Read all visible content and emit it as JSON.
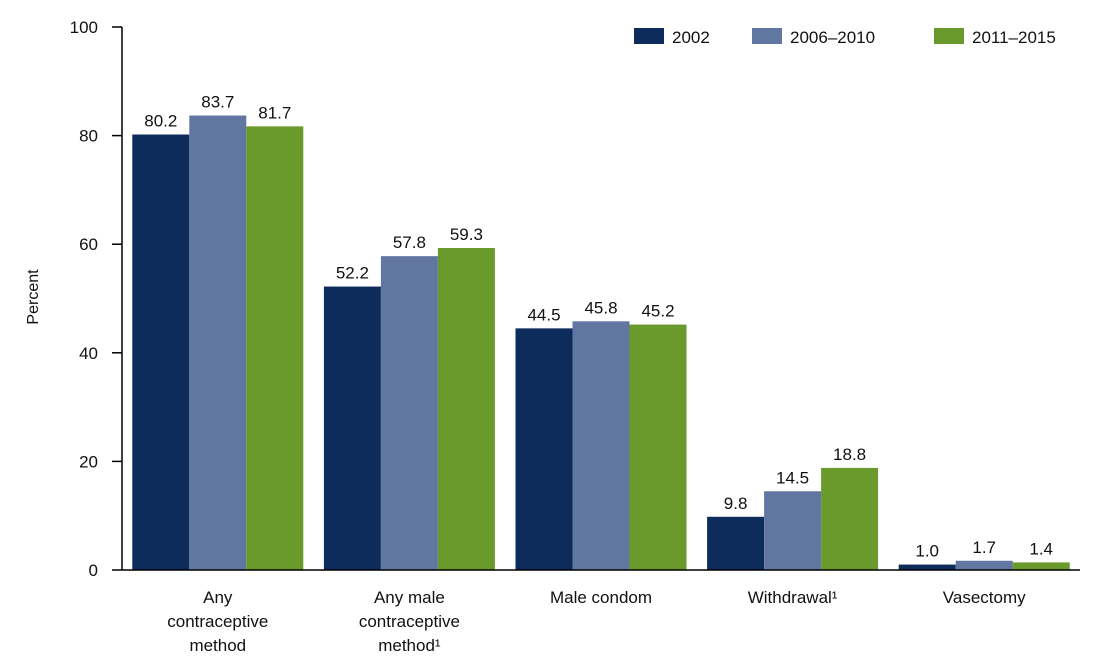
{
  "chart_data": {
    "type": "bar",
    "ylabel": "Percent",
    "xlabel": "",
    "ylim": [
      0,
      100
    ],
    "yticks": [
      "0",
      "20",
      "40",
      "60",
      "80",
      "100"
    ],
    "grid": false,
    "legend_position": "top-right",
    "categories": [
      [
        "Any",
        "contraceptive",
        "method"
      ],
      [
        "Any male",
        "contraceptive",
        "method¹"
      ],
      [
        "Male condom"
      ],
      [
        "Withdrawal¹"
      ],
      [
        "Vasectomy"
      ]
    ],
    "series": [
      {
        "name": "2002",
        "color": "#0d2b5b",
        "values": [
          80.2,
          52.2,
          44.5,
          9.8,
          1.0
        ],
        "labels": [
          "80.2",
          "52.2",
          "44.5",
          "9.8",
          "1.0"
        ]
      },
      {
        "name": "2006–2010",
        "color": "#6276a2",
        "values": [
          83.7,
          57.8,
          45.8,
          14.5,
          1.7
        ],
        "labels": [
          "83.7",
          "57.8",
          "45.8",
          "14.5",
          "1.7"
        ]
      },
      {
        "name": "2011–2015",
        "color": "#6a9a2b",
        "values": [
          81.7,
          59.3,
          45.2,
          18.8,
          1.4
        ],
        "labels": [
          "81.7",
          "59.3",
          "45.2",
          "18.8",
          "1.4"
        ]
      }
    ]
  }
}
